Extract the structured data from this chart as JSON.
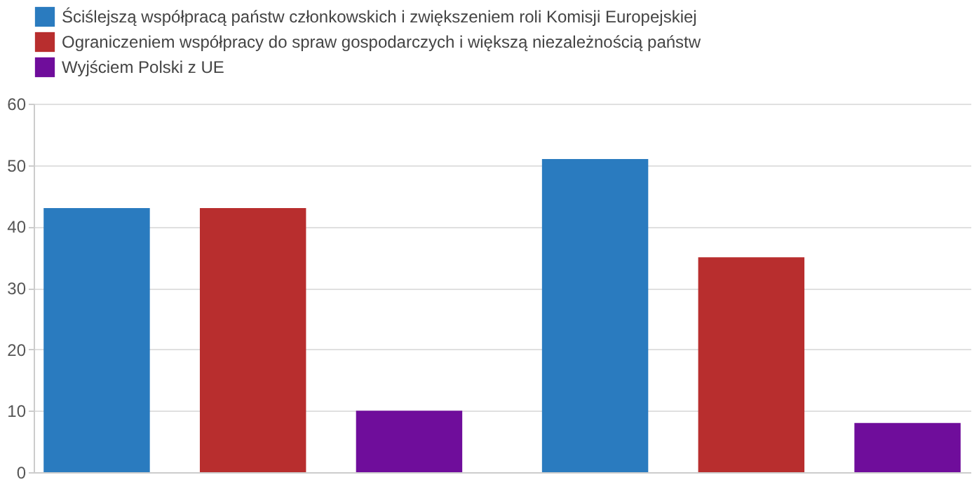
{
  "chart_data": {
    "type": "bar",
    "categories": [
      null,
      null
    ],
    "series": [
      {
        "name": "Ściślejszą współpracą państw członkowskich i zwiększeniem roli Komisji Europejskiej",
        "color": "#2a7bbf",
        "values": [
          43,
          51
        ]
      },
      {
        "name": "Ograniczeniem współpracy do spraw gospodarczych i większą niezależnością państw",
        "color": "#b82e2e",
        "values": [
          43,
          35
        ]
      },
      {
        "name": "Wyjściem Polski z UE",
        "color": "#6f0d9b",
        "values": [
          10,
          8
        ]
      }
    ],
    "ylim": [
      0,
      60
    ],
    "yticks": [
      0,
      10,
      20,
      30,
      40,
      50,
      60
    ],
    "grid": "y",
    "legend": "top",
    "tick_labels": "y"
  }
}
